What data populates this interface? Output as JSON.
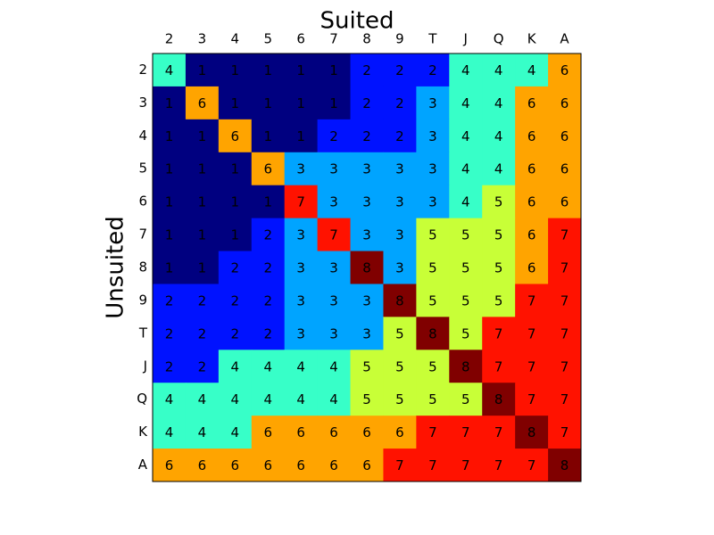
{
  "chart_data": {
    "type": "heatmap",
    "title": "Suited",
    "ylabel": "Unsuited",
    "colormap": "jet",
    "x_categories": [
      "2",
      "3",
      "4",
      "5",
      "6",
      "7",
      "8",
      "9",
      "T",
      "J",
      "Q",
      "K",
      "A"
    ],
    "y_categories": [
      "2",
      "3",
      "4",
      "5",
      "6",
      "7",
      "8",
      "9",
      "T",
      "J",
      "Q",
      "K",
      "A"
    ],
    "values": [
      [
        4,
        1,
        1,
        1,
        1,
        1,
        2,
        2,
        2,
        4,
        4,
        4,
        6
      ],
      [
        1,
        6,
        1,
        1,
        1,
        1,
        2,
        2,
        3,
        4,
        4,
        6,
        6
      ],
      [
        1,
        1,
        6,
        1,
        1,
        2,
        2,
        2,
        3,
        4,
        4,
        6,
        6
      ],
      [
        1,
        1,
        1,
        6,
        3,
        3,
        3,
        3,
        3,
        4,
        4,
        6,
        6
      ],
      [
        1,
        1,
        1,
        1,
        7,
        3,
        3,
        3,
        3,
        4,
        5,
        6,
        6
      ],
      [
        1,
        1,
        1,
        2,
        3,
        7,
        3,
        3,
        5,
        5,
        5,
        6,
        7
      ],
      [
        1,
        1,
        2,
        2,
        3,
        3,
        8,
        3,
        5,
        5,
        5,
        6,
        7
      ],
      [
        2,
        2,
        2,
        2,
        3,
        3,
        3,
        8,
        5,
        5,
        5,
        7,
        7
      ],
      [
        2,
        2,
        2,
        2,
        3,
        3,
        3,
        5,
        8,
        5,
        7,
        7,
        7
      ],
      [
        2,
        2,
        4,
        4,
        4,
        4,
        5,
        5,
        5,
        8,
        7,
        7,
        7
      ],
      [
        4,
        4,
        4,
        4,
        4,
        4,
        5,
        5,
        5,
        5,
        8,
        7,
        7
      ],
      [
        4,
        4,
        4,
        6,
        6,
        6,
        6,
        6,
        7,
        7,
        7,
        8,
        7
      ],
      [
        6,
        6,
        6,
        6,
        6,
        6,
        6,
        7,
        7,
        7,
        7,
        7,
        8
      ]
    ]
  }
}
